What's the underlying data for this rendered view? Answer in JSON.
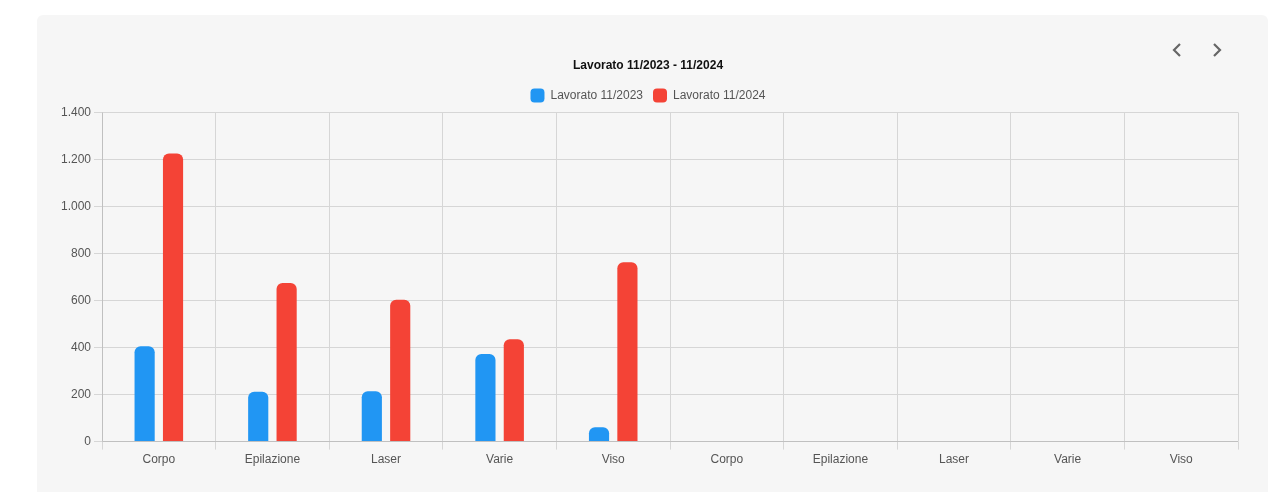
{
  "chart_data": {
    "type": "bar",
    "title": "Lavorato 11/2023 - 11/2024",
    "categories": [
      "Corpo",
      "Epilazione",
      "Laser",
      "Varie",
      "Viso",
      "Corpo",
      "Epilazione",
      "Laser",
      "Varie",
      "Viso"
    ],
    "series": [
      {
        "name": "Lavorato 11/2023",
        "color": "#2196f3",
        "values": [
          405,
          212,
          214,
          373,
          61,
          null,
          null,
          null,
          null,
          null
        ]
      },
      {
        "name": "Lavorato 11/2024",
        "color": "#f44336",
        "values": [
          1225,
          674,
          603,
          435,
          763,
          null,
          null,
          null,
          null,
          null
        ]
      }
    ],
    "ylim": [
      0,
      1400
    ],
    "yticks": [
      0,
      200,
      400,
      600,
      800,
      {
        "value": 1000,
        "label": "1.000"
      },
      {
        "value": 1200,
        "label": "1.200"
      },
      {
        "value": 1400,
        "label": "1.400"
      }
    ],
    "grid": true,
    "legend": "top"
  }
}
